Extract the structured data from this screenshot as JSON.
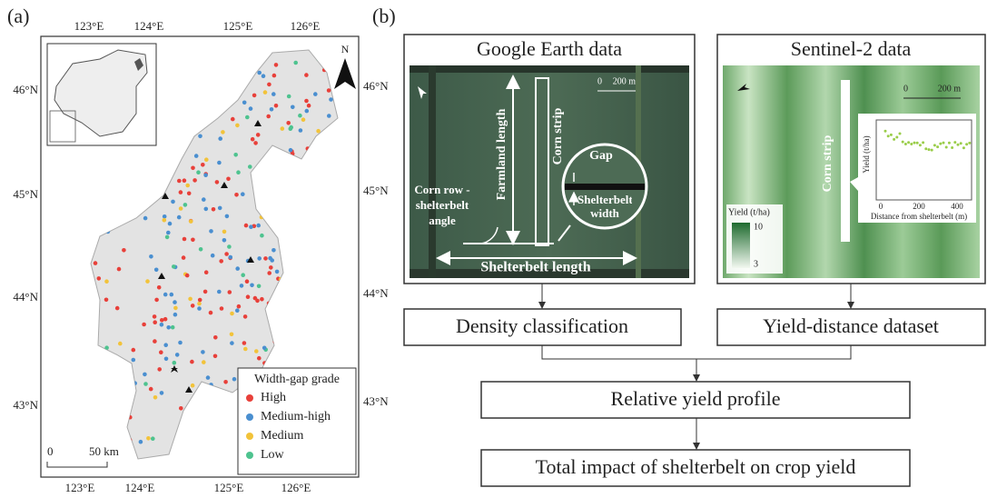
{
  "panel_a": {
    "label": "(a)",
    "lon_labels": [
      "123°E",
      "124°E",
      "125°E",
      "126°E"
    ],
    "lat_labels": [
      "46°N",
      "45°N",
      "44°N",
      "43°N"
    ],
    "north": "N",
    "legend": {
      "title": "Width-gap grade",
      "items": [
        {
          "name": "High",
          "color": "#e8403a"
        },
        {
          "name": "Medium-high",
          "color": "#4a8fd0"
        },
        {
          "name": "Medium",
          "color": "#f2c33a"
        },
        {
          "name": "Low",
          "color": "#4ec38f"
        }
      ]
    },
    "scale_bar": {
      "zero": "0",
      "distance": "50 km"
    }
  },
  "panel_b": {
    "label": "(b)",
    "google_earth": {
      "title": "Google Earth data",
      "farmland_length": "Farmland length",
      "corn_strip": "Corn strip",
      "gap": "Gap",
      "angle": "Corn row - shelterbelt angle",
      "shelterbelt_width": "Shelterbelt width",
      "shelterbelt_length": "Shelterbelt length",
      "scale_zero": "0",
      "scale_distance": "200 m"
    },
    "sentinel": {
      "title": "Sentinel-2 data",
      "corn_strip": "Corn strip",
      "scale_zero": "0",
      "scale_distance": "200 m",
      "colorbar_title": "Yield (t/ha)",
      "colorbar_max": "10",
      "colorbar_min": "3",
      "inset_y_label": "Yield (t/ha)",
      "inset_x_label": "Distance from shelterbelt (m)",
      "inset_x_ticks": [
        "0",
        "200",
        "400"
      ]
    },
    "flow": {
      "density": "Density classification",
      "dataset": "Yield-distance dataset",
      "profile": "Relative yield profile",
      "total": "Total impact of shelterbelt on crop yield"
    }
  }
}
